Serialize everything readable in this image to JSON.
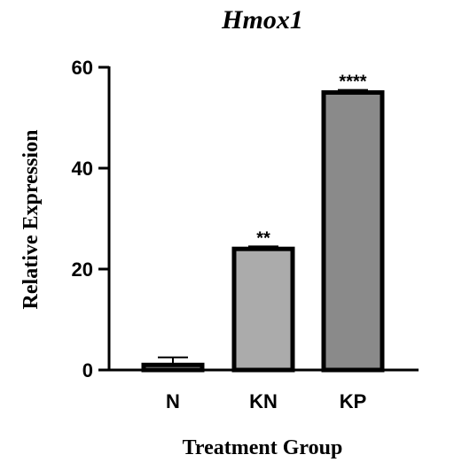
{
  "chart_data": {
    "type": "bar",
    "title": "Hmox1",
    "xlabel": "Treatment Group",
    "ylabel": "Relative Expression",
    "categories": [
      "N",
      "KN",
      "KP"
    ],
    "values": [
      1.0,
      24.0,
      55.0
    ],
    "errors": [
      1.5,
      0.5,
      0.5
    ],
    "significance": [
      "",
      "**",
      "****"
    ],
    "bar_colors": [
      "#ababab",
      "#ababab",
      "#8a8a8a"
    ],
    "ylim": [
      0,
      60
    ],
    "yticks": [
      0,
      20,
      40,
      60
    ],
    "grid": false
  }
}
